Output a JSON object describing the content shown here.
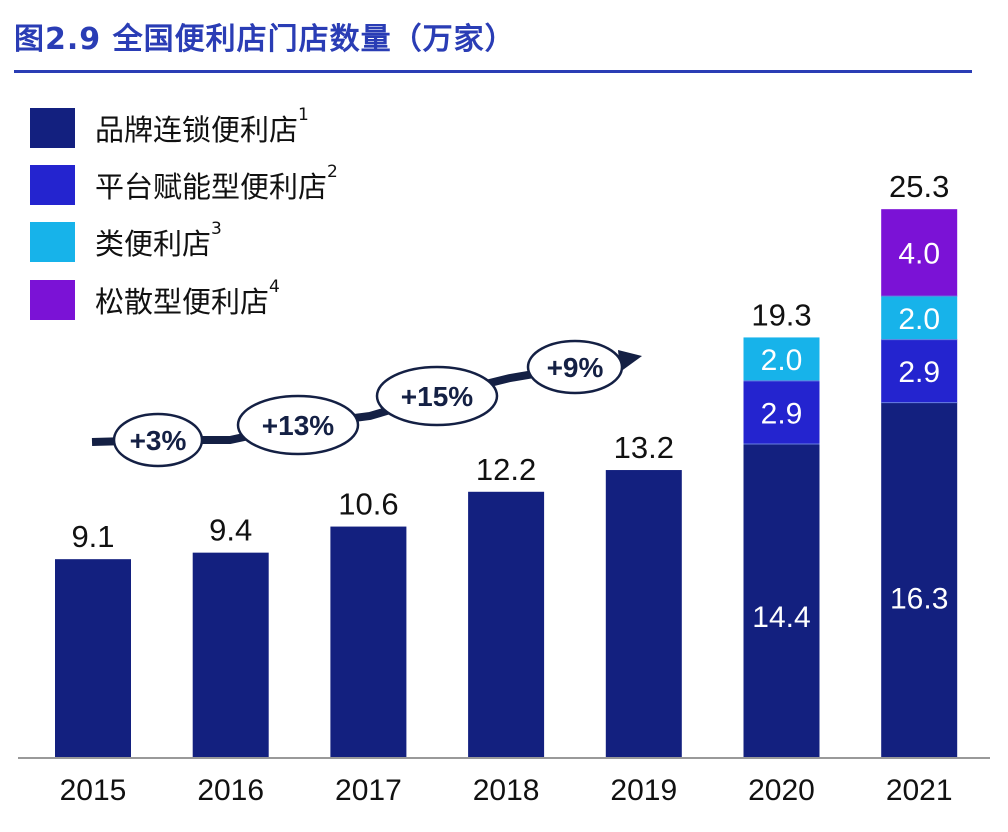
{
  "title": "图2.9 全国便利店门店数量（万家）",
  "chart_data": {
    "type": "bar",
    "stacked": true,
    "title": "图2.9 全国便利店门店数量（万家）",
    "categories": [
      "2015",
      "2016",
      "2017",
      "2018",
      "2019",
      "2020",
      "2021"
    ],
    "series": [
      {
        "name": "品牌连锁便利店",
        "note": "1",
        "color": "#13207f",
        "values": [
          9.1,
          9.4,
          10.6,
          12.2,
          13.2,
          14.4,
          16.3
        ]
      },
      {
        "name": "平台赋能型便利店",
        "note": "2",
        "color": "#2424cf",
        "values": [
          null,
          null,
          null,
          null,
          null,
          2.9,
          2.9
        ]
      },
      {
        "name": "类便利店",
        "note": "3",
        "color": "#17b3ea",
        "values": [
          null,
          null,
          null,
          null,
          null,
          2.0,
          2.0
        ]
      },
      {
        "name": "松散型便利店",
        "note": "4",
        "color": "#7b12d6",
        "values": [
          null,
          null,
          null,
          null,
          null,
          null,
          4.0
        ]
      }
    ],
    "totals": [
      "9.1",
      "9.4",
      "10.6",
      "12.2",
      "13.2",
      "19.3",
      "25.3"
    ],
    "segment_labels": {
      "2020": [
        "14.4",
        "2.9",
        "2.0"
      ],
      "2021": [
        "16.3",
        "2.9",
        "2.0",
        "4.0"
      ]
    },
    "growth_annotations": [
      "+3%",
      "+13%",
      "+15%",
      "+9%"
    ],
    "ylim": [
      0,
      25.3
    ],
    "grid": false,
    "legend": "top-left"
  }
}
